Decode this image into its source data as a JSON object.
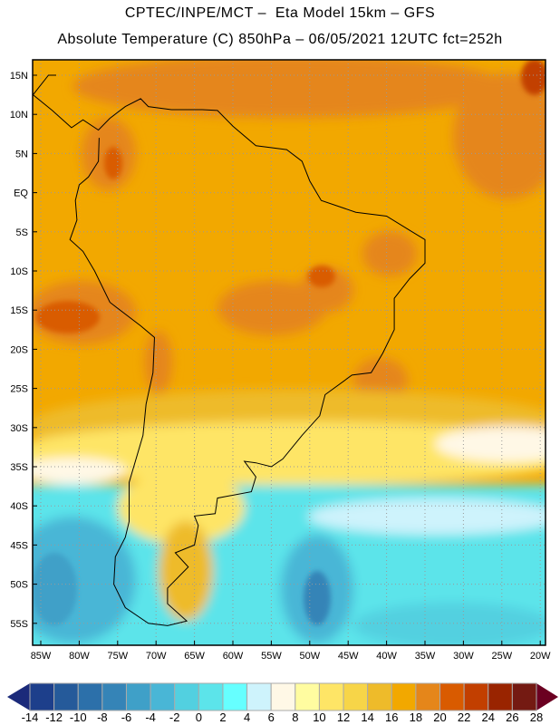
{
  "header": {
    "title_line1": "CPTEC/INPE/MCT –  Eta Model 15km – GFS",
    "title_line2": "Absolute Temperature (C) 850hPa – 06/05/2021 12UTC fct=252h"
  },
  "map": {
    "lat_labels": [
      "15N",
      "10N",
      "5N",
      "EQ",
      "5S",
      "10S",
      "15S",
      "20S",
      "25S",
      "30S",
      "35S",
      "40S",
      "45S",
      "50S",
      "55S"
    ],
    "lat_values": [
      15,
      10,
      5,
      0,
      -5,
      -10,
      -15,
      -20,
      -25,
      -30,
      -35,
      -40,
      -45,
      -50,
      -55
    ],
    "lon_labels": [
      "85W",
      "80W",
      "75W",
      "70W",
      "65W",
      "60W",
      "55W",
      "50W",
      "45W",
      "40W",
      "35W",
      "30W",
      "25W",
      "20W"
    ],
    "lon_values": [
      -85,
      -80,
      -75,
      -70,
      -65,
      -60,
      -55,
      -50,
      -45,
      -40,
      -35,
      -30,
      -25,
      -20
    ],
    "variable": "Absolute Temperature (C) 850hPa"
  },
  "colorbar": {
    "labels": [
      "-14",
      "-12",
      "-10",
      "-8",
      "-6",
      "-4",
      "-2",
      "0",
      "2",
      "4",
      "6",
      "8",
      "10",
      "12",
      "14",
      "16",
      "18",
      "20",
      "22",
      "24",
      "26",
      "28"
    ],
    "colors": [
      "#1d3f8b",
      "#255a9a",
      "#2c70aa",
      "#3584b7",
      "#3fa0c8",
      "#49b6d6",
      "#52d0e0",
      "#5ce4ea",
      "#66ffff",
      "#cef3fc",
      "#fff8e6",
      "#fffca0",
      "#fee566",
      "#f7d548",
      "#eebb2a",
      "#f2a800",
      "#e5861a",
      "#d95b00",
      "#c23f00",
      "#992400",
      "#741a12"
    ],
    "under_color": "#1b2a7a",
    "over_color": "#6b0021"
  }
}
